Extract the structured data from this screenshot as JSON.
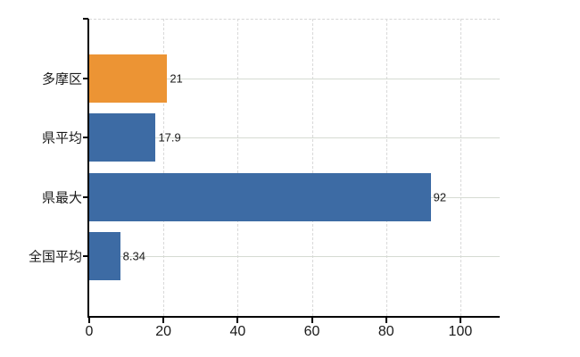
{
  "chart_data": {
    "type": "bar",
    "orientation": "horizontal",
    "title": "",
    "categories": [
      "多摩区",
      "県平均",
      "県最大",
      "全国平均"
    ],
    "values": [
      21,
      17.9,
      92,
      8.34
    ],
    "value_labels": [
      "21",
      "17.9",
      "92",
      "8.34"
    ],
    "bar_colors": [
      "#ec9434",
      "#3d6ba4",
      "#3d6ba4",
      "#3d6ba4"
    ],
    "x_ticks": [
      0,
      20,
      40,
      60,
      80,
      100
    ],
    "x_tick_labels": [
      "0",
      "20",
      "40",
      "60",
      "80",
      "100"
    ],
    "xlim": [
      0,
      110.6
    ],
    "legend": "none",
    "grid": {
      "vertical": "dashed",
      "horizontal": "solid",
      "top_border": "dashed"
    }
  },
  "style": {
    "background": "#ffffff",
    "axis_color": "#000000",
    "text_color": "#1a1a1a",
    "grid_horizontal_color": "#d5dbd2",
    "grid_vertical_color": "#d9d9d9",
    "accent_orange": "#ec9434",
    "accent_blue": "#3d6ba4"
  }
}
